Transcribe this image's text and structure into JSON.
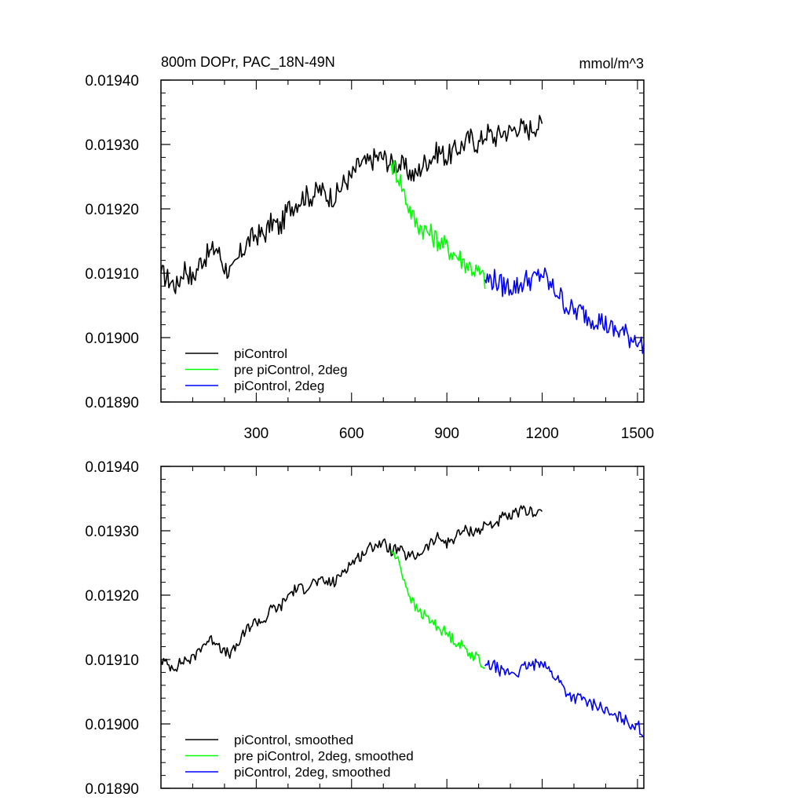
{
  "chart_data": [
    {
      "type": "line",
      "title": "800m DOPr, PAC_18N-49N",
      "units": "mmol/m^3",
      "xlabel": "",
      "ylabel": "",
      "xlim": [
        0,
        1520
      ],
      "ylim": [
        0.0189,
        0.0194
      ],
      "xticks": [
        300,
        600,
        900,
        1200,
        1500
      ],
      "yticks": [
        "0.01890",
        "0.01900",
        "0.01910",
        "0.01920",
        "0.01930",
        "0.01940"
      ],
      "legend_position": "bottom-left",
      "series": [
        {
          "name": "piControl",
          "color": "#000000",
          "x": [
            0,
            25,
            50,
            75,
            100,
            125,
            150,
            175,
            200,
            225,
            250,
            275,
            300,
            325,
            350,
            375,
            400,
            425,
            450,
            475,
            500,
            525,
            550,
            575,
            600,
            625,
            650,
            675,
            700,
            725,
            750,
            775,
            800,
            825,
            850,
            875,
            900,
            925,
            950,
            975,
            1000,
            1025,
            1050,
            1075,
            1100,
            1125,
            1150,
            1175,
            1200
          ],
          "values": [
            0.0191,
            0.01909,
            0.01908,
            0.01911,
            0.01909,
            0.01912,
            0.01913,
            0.01914,
            0.01911,
            0.0191,
            0.01913,
            0.01915,
            0.01916,
            0.01916,
            0.01918,
            0.01917,
            0.0192,
            0.01921,
            0.01922,
            0.01922,
            0.01923,
            0.01922,
            0.01922,
            0.01924,
            0.01925,
            0.01927,
            0.01927,
            0.01928,
            0.01928,
            0.01927,
            0.01927,
            0.01926,
            0.01925,
            0.01927,
            0.01928,
            0.01929,
            0.01928,
            0.01929,
            0.0193,
            0.01931,
            0.0193,
            0.01932,
            0.01931,
            0.01932,
            0.01932,
            0.01933,
            0.01932,
            0.01933,
            0.01933
          ]
        },
        {
          "name": "pre piControl, 2deg",
          "color": "#00ff00",
          "x": [
            725,
            750,
            775,
            800,
            825,
            850,
            875,
            900,
            925,
            950,
            975,
            1000,
            1020
          ],
          "values": [
            0.01927,
            0.01925,
            0.01921,
            0.01918,
            0.01917,
            0.01916,
            0.01915,
            0.01914,
            0.01913,
            0.01912,
            0.01911,
            0.0191,
            0.01909
          ]
        },
        {
          "name": "piControl, 2deg",
          "color": "#0000ff",
          "x": [
            1020,
            1050,
            1075,
            1100,
            1125,
            1150,
            1175,
            1200,
            1225,
            1250,
            1275,
            1300,
            1325,
            1350,
            1375,
            1400,
            1425,
            1450,
            1475,
            1500,
            1520
          ],
          "values": [
            0.01909,
            0.01909,
            0.01908,
            0.01908,
            0.01908,
            0.01909,
            0.01909,
            0.0191,
            0.01908,
            0.01907,
            0.01905,
            0.01904,
            0.01904,
            0.01903,
            0.01903,
            0.01902,
            0.01901,
            0.01901,
            0.019,
            0.019,
            0.01898
          ]
        }
      ]
    },
    {
      "type": "line",
      "title": "",
      "xlabel": "",
      "ylabel": "",
      "xlim": [
        0,
        1520
      ],
      "ylim": [
        0.0189,
        0.0194
      ],
      "yticks": [
        "0.01890",
        "0.01900",
        "0.01910",
        "0.01920",
        "0.01930",
        "0.01940"
      ],
      "legend_position": "bottom-left",
      "series": [
        {
          "name": "piControl, smoothed",
          "color": "#000000",
          "x": [
            0,
            25,
            50,
            75,
            100,
            125,
            150,
            175,
            200,
            225,
            250,
            275,
            300,
            325,
            350,
            375,
            400,
            425,
            450,
            475,
            500,
            525,
            550,
            575,
            600,
            625,
            650,
            675,
            700,
            725,
            750,
            775,
            800,
            825,
            850,
            875,
            900,
            925,
            950,
            975,
            1000,
            1025,
            1050,
            1075,
            1100,
            1125,
            1150,
            1175,
            1200
          ],
          "values": [
            0.0191,
            0.01909,
            0.01909,
            0.0191,
            0.0191,
            0.01912,
            0.01913,
            0.01913,
            0.01911,
            0.01911,
            0.01913,
            0.01915,
            0.01916,
            0.01916,
            0.01918,
            0.01918,
            0.0192,
            0.01921,
            0.01921,
            0.01922,
            0.01922,
            0.01922,
            0.01922,
            0.01924,
            0.01925,
            0.01926,
            0.01927,
            0.01928,
            0.01928,
            0.01927,
            0.01927,
            0.01926,
            0.01926,
            0.01927,
            0.01928,
            0.01929,
            0.01928,
            0.01929,
            0.0193,
            0.0193,
            0.0193,
            0.01931,
            0.01931,
            0.01932,
            0.01932,
            0.01933,
            0.01933,
            0.01933,
            0.01933
          ]
        },
        {
          "name": "pre piControl, 2deg, smoothed",
          "color": "#00ff00",
          "x": [
            725,
            750,
            775,
            800,
            825,
            850,
            875,
            900,
            925,
            950,
            975,
            1000,
            1020
          ],
          "values": [
            0.01927,
            0.01925,
            0.01921,
            0.01918,
            0.01917,
            0.01916,
            0.01915,
            0.01914,
            0.01913,
            0.01912,
            0.01911,
            0.0191,
            0.01909
          ]
        },
        {
          "name": "piControl, 2deg, smoothed",
          "color": "#0000ff",
          "x": [
            1020,
            1050,
            1075,
            1100,
            1125,
            1150,
            1175,
            1200,
            1225,
            1250,
            1275,
            1300,
            1325,
            1350,
            1375,
            1400,
            1425,
            1450,
            1475,
            1500,
            1520
          ],
          "values": [
            0.01909,
            0.01909,
            0.01908,
            0.01908,
            0.01908,
            0.01909,
            0.01909,
            0.0191,
            0.01908,
            0.01907,
            0.01905,
            0.01904,
            0.01904,
            0.01903,
            0.01903,
            0.01902,
            0.01901,
            0.01901,
            0.019,
            0.019,
            0.01898
          ]
        }
      ]
    }
  ]
}
